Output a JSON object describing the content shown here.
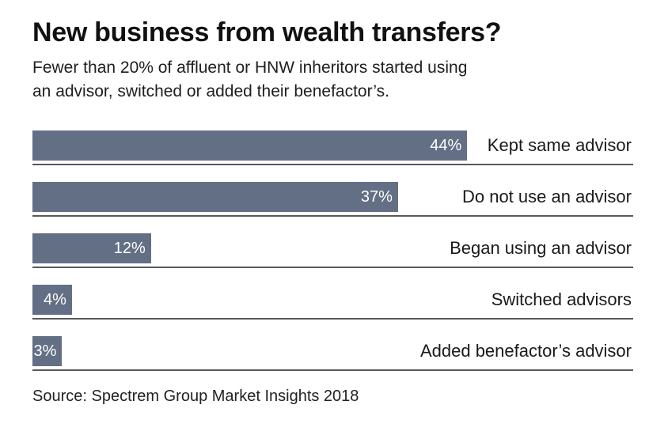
{
  "header": {
    "title": "New business from wealth transfers?",
    "subtitle_line1": "Fewer than 20% of affluent or HNW inheritors started using",
    "subtitle_line2": "an advisor, switched or added their benefactor’s."
  },
  "chart_data": {
    "type": "bar",
    "orientation": "horizontal",
    "title": "New business from wealth transfers?",
    "subtitle": "Fewer than 20% of affluent or HNW inheritors started using an advisor, switched or added their benefactor’s.",
    "categories": [
      "Kept same advisor",
      "Do not use an advisor",
      "Began using an advisor",
      "Switched advisors",
      "Added benefactor’s advisor"
    ],
    "values": [
      44,
      37,
      12,
      4,
      3
    ],
    "value_labels": [
      "44%",
      "37%",
      "12%",
      "4%",
      "3%"
    ],
    "xlabel": "",
    "ylabel": "",
    "xlim": [
      0,
      60.8
    ],
    "grid": false,
    "legend": false,
    "value_labels_position": "inside-end",
    "category_labels_position": "right-aligned",
    "bar_color": "#636f84",
    "value_label_color": "#ffffff",
    "baseline_color": "#58595b"
  },
  "footer": {
    "source": "Source: Spectrem Group Market Insights 2018"
  }
}
